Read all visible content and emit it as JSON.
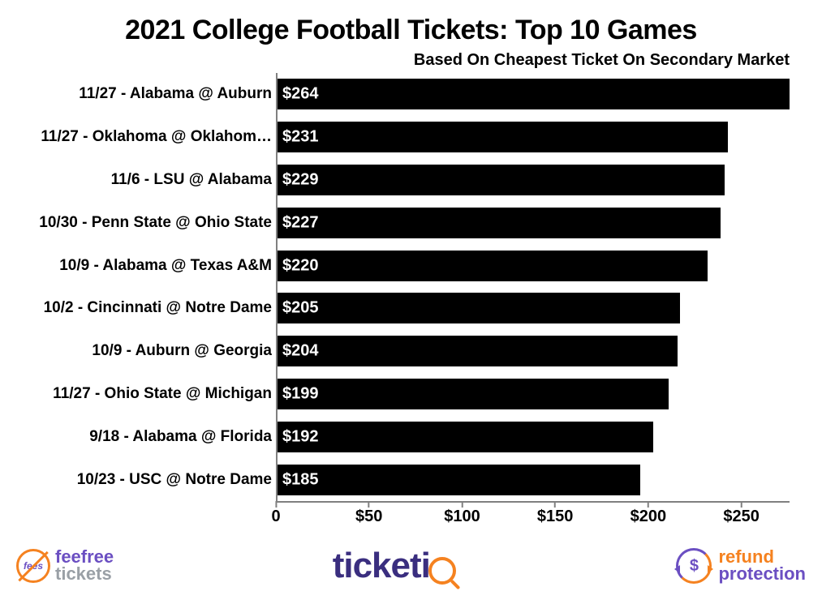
{
  "chart": {
    "type": "bar-horizontal",
    "title": "2021 College Football Tickets: Top 10 Games",
    "title_fontsize": 34,
    "subtitle": "Based On Cheapest Ticket On Secondary Market",
    "subtitle_fontsize": 20,
    "background_color": "#ffffff",
    "bar_color": "#000000",
    "value_label_color": "#ffffff",
    "axis_color": "#808080",
    "text_color": "#000000",
    "label_fontsize": 19,
    "value_fontsize": 20,
    "tick_fontsize": 20,
    "xlim": [
      0,
      275
    ],
    "xticks": [
      {
        "value": 0,
        "label": "0"
      },
      {
        "value": 50,
        "label": "$50"
      },
      {
        "value": 100,
        "label": "$100"
      },
      {
        "value": 150,
        "label": "$150"
      },
      {
        "value": 200,
        "label": "$200"
      },
      {
        "value": 250,
        "label": "$250"
      }
    ],
    "bar_height_ratio": 0.72,
    "rows": [
      {
        "label": "11/27 - Alabama @ Auburn",
        "value": 264,
        "display": "$264",
        "bar_extent": 275
      },
      {
        "label": "11/27 - Oklahoma @ Oklahom…",
        "value": 231,
        "display": "$231",
        "bar_extent": 242
      },
      {
        "label": "11/6 - LSU @ Alabama",
        "value": 229,
        "display": "$229",
        "bar_extent": 240
      },
      {
        "label": "10/30 - Penn State @ Ohio State",
        "value": 227,
        "display": "$227",
        "bar_extent": 238
      },
      {
        "label": "10/9 - Alabama @ Texas A&M",
        "value": 220,
        "display": "$220",
        "bar_extent": 231
      },
      {
        "label": "10/2 - Cincinnati @ Notre Dame",
        "value": 205,
        "display": "$205",
        "bar_extent": 216
      },
      {
        "label": "10/9 - Auburn @ Georgia",
        "value": 204,
        "display": "$204",
        "bar_extent": 215
      },
      {
        "label": "11/27 - Ohio State @ Michigan",
        "value": 199,
        "display": "$199",
        "bar_extent": 210
      },
      {
        "label": "9/18 - Alabama @ Florida",
        "value": 192,
        "display": "$192",
        "bar_extent": 202
      },
      {
        "label": "10/23 - USC @ Notre Dame",
        "value": 185,
        "display": "$185",
        "bar_extent": 195
      }
    ]
  },
  "footer": {
    "feefree": {
      "icon_text": "fees",
      "line1": "feefree",
      "line2": "tickets",
      "icon_color": "#f58220",
      "text_color": "#6b4fc2",
      "text2_color": "#9aa0a6"
    },
    "ticketiq": {
      "prefix": "ticket",
      "suffix": "i",
      "text_color": "#3a2e7f",
      "accent_color": "#f58220"
    },
    "refund": {
      "icon_text": "$",
      "line1": "refund",
      "line2": "protection",
      "color1": "#f58220",
      "color2": "#6b4fc2"
    }
  }
}
